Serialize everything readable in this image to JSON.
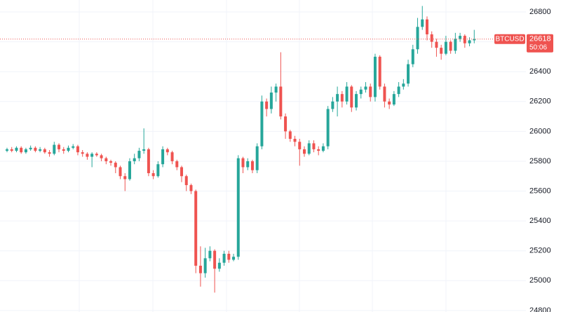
{
  "chart_data": {
    "type": "candlestick",
    "symbol": "BTCUSD",
    "last_price": 26618,
    "countdown": "50:06",
    "up_color": "#26a69a",
    "down_color": "#ef5350",
    "grid": true,
    "ylim": [
      24790,
      26880
    ],
    "yticks": [
      24800,
      25000,
      25200,
      25400,
      25600,
      25800,
      26000,
      26200,
      26400,
      26600,
      26800
    ],
    "open": [
      25870,
      25880,
      25870,
      25890,
      25860,
      25880,
      25890,
      25870,
      25880,
      25860,
      25850,
      25910,
      25880,
      25870,
      25890,
      25900,
      25860,
      25850,
      25830,
      25850,
      25840,
      25820,
      25800,
      25790,
      25760,
      25700,
      25680,
      25800,
      25820,
      25870,
      25880,
      25720,
      25700,
      25780,
      25880,
      25860,
      25800,
      25760,
      25700,
      25640,
      25600,
      25100,
      25050,
      25150,
      25200,
      25080,
      25120,
      25180,
      25140,
      25160,
      25820,
      25760,
      25800,
      25740,
      25900,
      26200,
      26150,
      26260,
      26300,
      26100,
      26000,
      25950,
      25930,
      25880,
      25850,
      25920,
      25880,
      25870,
      25900,
      26150,
      26200,
      26250,
      26200,
      26300,
      26160,
      26250,
      26280,
      26300,
      26230,
      26500,
      26300,
      26200,
      26180,
      26250,
      26300,
      26320,
      26450,
      26550,
      26700,
      26750,
      26650,
      26600,
      26560,
      26520,
      26600,
      26540,
      26620,
      26640,
      26590,
      26610
    ],
    "high": [
      25890,
      25895,
      25900,
      25900,
      25890,
      25905,
      25900,
      25895,
      25890,
      25875,
      25930,
      25920,
      25895,
      25905,
      25915,
      25910,
      25875,
      25860,
      25860,
      25860,
      25850,
      25830,
      25810,
      25800,
      25770,
      25720,
      25820,
      25850,
      25890,
      26020,
      25890,
      25740,
      25800,
      25900,
      25890,
      25870,
      25810,
      25770,
      25710,
      25650,
      25610,
      25230,
      25220,
      25230,
      25210,
      25150,
      25200,
      25200,
      25180,
      25840,
      25830,
      25820,
      25810,
      25920,
      26240,
      26220,
      26300,
      26320,
      26530,
      26120,
      26010,
      25970,
      25950,
      25900,
      25940,
      25940,
      25900,
      25920,
      26170,
      26230,
      26300,
      26270,
      26330,
      26310,
      26270,
      26300,
      26330,
      26320,
      26520,
      26510,
      26320,
      26220,
      26270,
      26330,
      26350,
      26480,
      26580,
      26760,
      26840,
      26770,
      26670,
      26620,
      26580,
      26640,
      26610,
      26660,
      26660,
      26650,
      26630,
      26680
    ],
    "low": [
      25860,
      25860,
      25860,
      25850,
      25850,
      25870,
      25860,
      25860,
      25850,
      25830,
      25840,
      25860,
      25850,
      25860,
      25880,
      25840,
      25830,
      25810,
      25760,
      25830,
      25800,
      25780,
      25770,
      25720,
      25680,
      25600,
      25670,
      25780,
      25800,
      25850,
      25700,
      25680,
      25690,
      25760,
      25840,
      25780,
      25740,
      25660,
      25600,
      25580,
      25050,
      24960,
      25020,
      25130,
      24920,
      25060,
      25100,
      25120,
      25130,
      25140,
      25720,
      25740,
      25720,
      25720,
      25880,
      26100,
      26120,
      26200,
      26080,
      25950,
      25930,
      25900,
      25770,
      25830,
      25840,
      25860,
      25840,
      25860,
      25880,
      26130,
      26100,
      26160,
      26180,
      26130,
      26140,
      26220,
      26260,
      26200,
      26200,
      26280,
      26160,
      26150,
      26170,
      26230,
      26280,
      26300,
      26430,
      26520,
      26680,
      26610,
      26560,
      26500,
      26480,
      26510,
      26520,
      26520,
      26600,
      26560,
      26570,
      26590
    ],
    "close": [
      25880,
      25870,
      25890,
      25860,
      25880,
      25890,
      25870,
      25880,
      25860,
      25850,
      25910,
      25880,
      25870,
      25890,
      25900,
      25860,
      25850,
      25830,
      25850,
      25840,
      25820,
      25800,
      25790,
      25760,
      25700,
      25680,
      25800,
      25820,
      25870,
      25880,
      25720,
      25700,
      25780,
      25880,
      25860,
      25800,
      25760,
      25700,
      25640,
      25600,
      25100,
      25050,
      25150,
      25200,
      25080,
      25120,
      25180,
      25140,
      25160,
      25820,
      25760,
      25800,
      25740,
      25900,
      26200,
      26150,
      26260,
      26300,
      26100,
      26000,
      25950,
      25930,
      25880,
      25850,
      25920,
      25880,
      25870,
      25900,
      26150,
      26200,
      26250,
      26200,
      26300,
      26160,
      26250,
      26280,
      26300,
      26230,
      26500,
      26300,
      26200,
      26180,
      26250,
      26300,
      26320,
      26450,
      26550,
      26700,
      26750,
      26650,
      26600,
      26560,
      26520,
      26600,
      26540,
      26620,
      26640,
      26590,
      26610,
      26618
    ]
  }
}
